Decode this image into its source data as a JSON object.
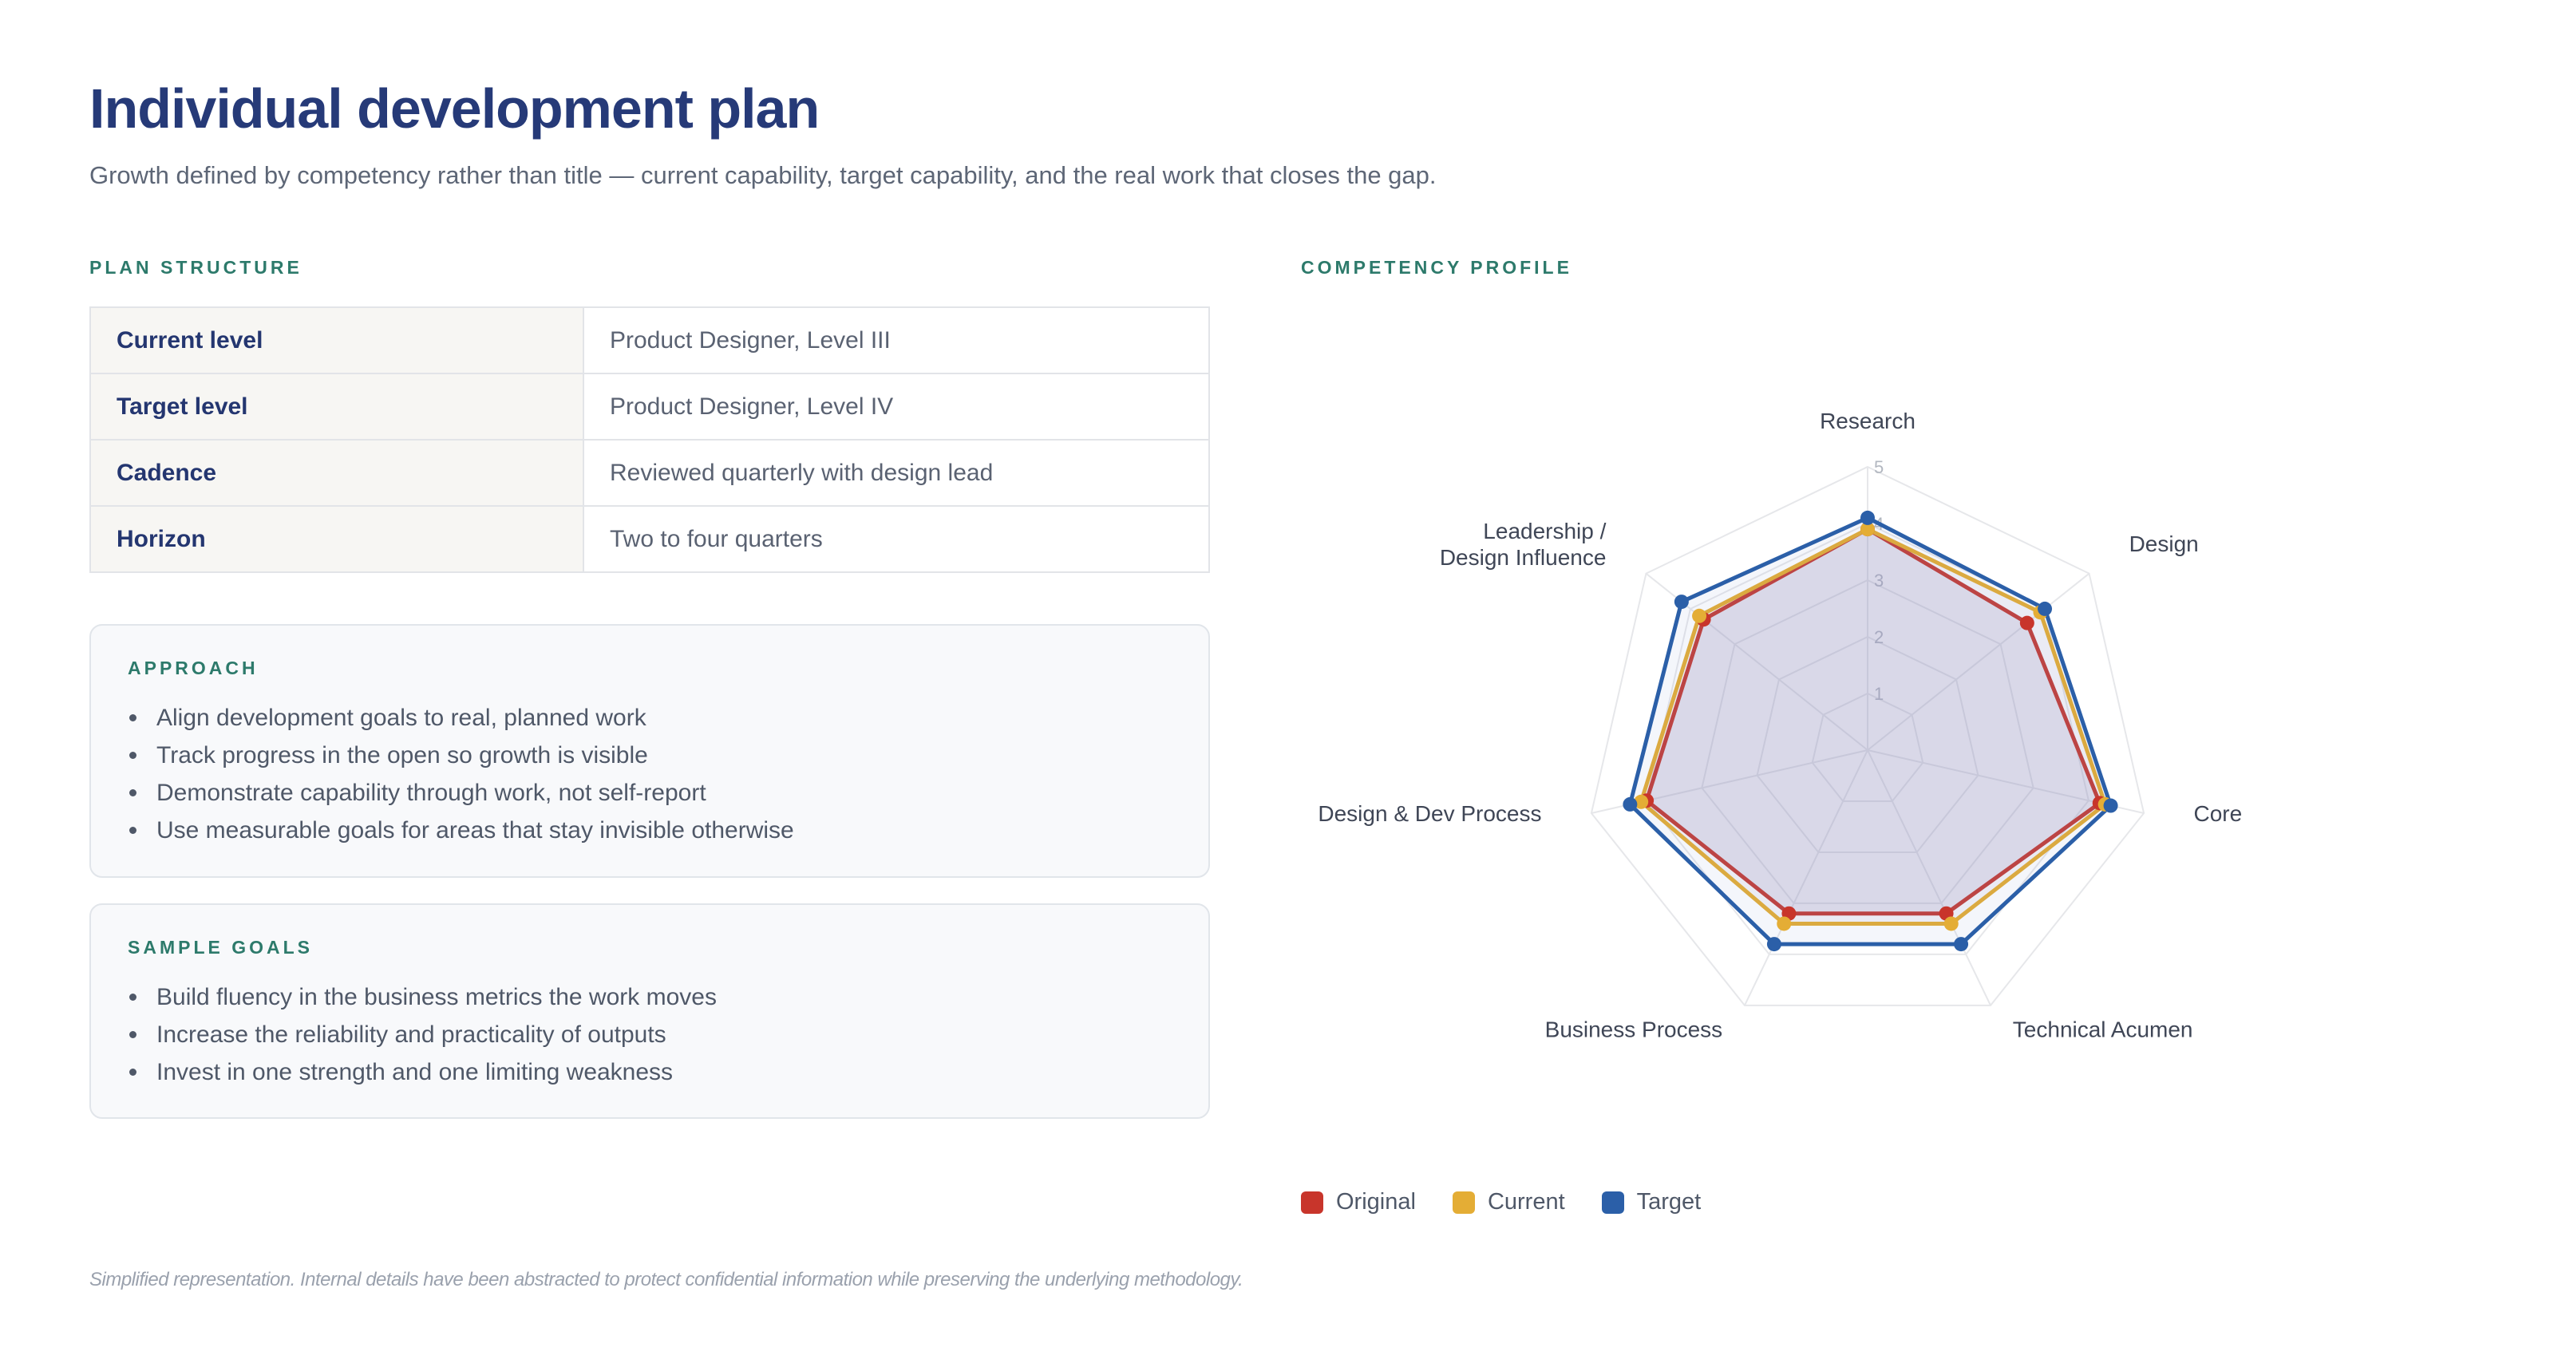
{
  "header": {
    "title": "Individual development plan",
    "subtitle": "Growth defined by competency rather than title — current capability, target capability, and the real work that closes the gap."
  },
  "plan": {
    "label": "PLAN STRUCTURE",
    "rows": [
      {
        "key": "Current level",
        "value": "Product Designer, Level III"
      },
      {
        "key": "Target level",
        "value": "Product Designer, Level IV"
      },
      {
        "key": "Cadence",
        "value": "Reviewed quarterly with design lead"
      },
      {
        "key": "Horizon",
        "value": "Two to four quarters"
      }
    ]
  },
  "approach": {
    "label": "APPROACH",
    "items": [
      "Align development goals to real, planned work",
      "Track progress in the open so growth is visible",
      "Demonstrate capability through work, not self-report",
      "Use measurable goals for areas that stay invisible otherwise"
    ]
  },
  "goals": {
    "label": "SAMPLE GOALS",
    "items": [
      "Build fluency in the business metrics the work moves",
      "Increase the reliability and practicality of outputs",
      "Invest in one strength and one limiting weakness"
    ]
  },
  "profile": {
    "label": "COMPETENCY PROFILE"
  },
  "chart_data": {
    "type": "radar",
    "categories": [
      "Research",
      "Design",
      "Core",
      "Technical Acumen",
      "Business Process",
      "Design & Dev Process",
      "Leadership / Design Influence"
    ],
    "ticks": [
      "1",
      "2",
      "3",
      "4",
      "5"
    ],
    "range": [
      0,
      5
    ],
    "series": [
      {
        "name": "Original",
        "color": "#c8352b",
        "values": [
          3.9,
          3.6,
          4.2,
          3.2,
          3.2,
          4.0,
          3.7
        ]
      },
      {
        "name": "Current",
        "color": "#e4ad35",
        "values": [
          3.9,
          3.9,
          4.3,
          3.4,
          3.4,
          4.1,
          3.8
        ]
      },
      {
        "name": "Target",
        "color": "#2b5fa8",
        "values": [
          4.1,
          4.0,
          4.4,
          3.8,
          3.8,
          4.3,
          4.2
        ]
      }
    ]
  },
  "footnote": "Simplified representation. Internal details have been abstracted to protect confidential information while preserving the underlying methodology."
}
